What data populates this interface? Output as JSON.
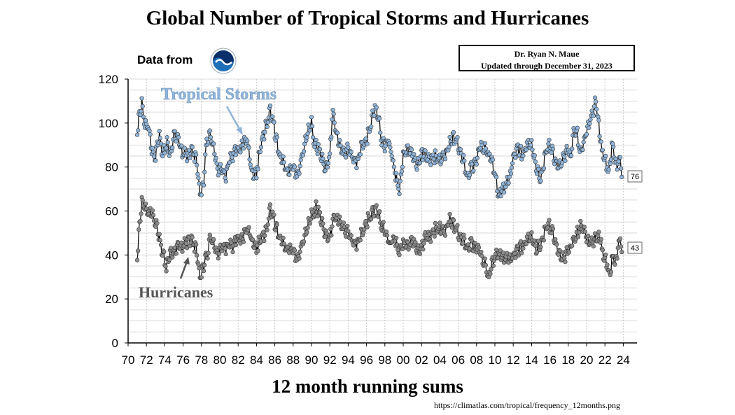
{
  "title": "Global Number of Tropical Storms and Hurricanes",
  "data_from": "Data from",
  "logo_name": "NOAA",
  "credit": {
    "author": "Dr. Ryan N. Maue",
    "updated": "Updated through December 31, 2023"
  },
  "source_url": "https://climatlas.com/tropical/frequency_12months.png",
  "chart_data": {
    "type": "line",
    "title": "Global Number of Tropical Storms and Hurricanes",
    "xlabel": "12 month running sums",
    "ylabel": "",
    "ylim": [
      0,
      120
    ],
    "xlim": [
      1970,
      2025
    ],
    "yticks": [
      "0",
      "20",
      "40",
      "60",
      "80",
      "100",
      "120"
    ],
    "xticks": [
      "70",
      "72",
      "74",
      "76",
      "78",
      "80",
      "82",
      "84",
      "86",
      "88",
      "90",
      "92",
      "94",
      "96",
      "98",
      "00",
      "02",
      "04",
      "06",
      "08",
      "10",
      "12",
      "14",
      "16",
      "18",
      "20",
      "22",
      "24"
    ],
    "grid": true,
    "colors": {
      "tropical_storms": "#8fb4d9",
      "hurricanes": "#8c8c8c",
      "fill": "#a9c6e6"
    },
    "annotations": {
      "tropical_storms": "Tropical Storms",
      "hurricanes": "Hurricanes",
      "ts_last": "76",
      "hu_last": "43"
    },
    "series": [
      {
        "name": "Tropical Storms",
        "x": [
          1971.0,
          1971.3,
          1971.5,
          1971.8,
          1972.2,
          1972.6,
          1973.0,
          1973.4,
          1973.8,
          1974.2,
          1974.6,
          1975.0,
          1975.5,
          1976.0,
          1976.5,
          1977.0,
          1977.5,
          1977.8,
          1978.2,
          1978.6,
          1979.0,
          1979.4,
          1979.8,
          1980.2,
          1980.6,
          1981.0,
          1981.5,
          1982.0,
          1982.5,
          1983.0,
          1983.3,
          1983.7,
          1984.0,
          1984.5,
          1985.0,
          1985.5,
          1985.8,
          1986.2,
          1986.6,
          1987.0,
          1987.5,
          1988.0,
          1988.5,
          1989.0,
          1989.5,
          1990.0,
          1990.3,
          1990.7,
          1991.0,
          1991.5,
          1992.0,
          1992.3,
          1992.6,
          1993.0,
          1993.5,
          1994.0,
          1994.5,
          1995.0,
          1995.5,
          1996.0,
          1996.5,
          1996.9,
          1997.3,
          1997.7,
          1998.0,
          1998.4,
          1998.8,
          1999.2,
          1999.6,
          2000.0,
          2000.5,
          2001.0,
          2001.5,
          2002.0,
          2002.5,
          2003.0,
          2003.5,
          2004.0,
          2004.5,
          2005.0,
          2005.5,
          2006.0,
          2006.5,
          2007.0,
          2007.5,
          2008.0,
          2008.5,
          2009.0,
          2009.5,
          2010.0,
          2010.4,
          2010.8,
          2011.2,
          2011.6,
          2012.0,
          2012.5,
          2013.0,
          2013.5,
          2014.0,
          2014.3,
          2014.7,
          2015.0,
          2015.5,
          2016.0,
          2016.5,
          2017.0,
          2017.5,
          2018.0,
          2018.3,
          2018.6,
          2019.0,
          2019.3,
          2019.7,
          2020.0,
          2020.4,
          2020.7,
          2021.0,
          2021.3,
          2021.6,
          2022.0,
          2022.4,
          2022.8,
          2023.2,
          2023.6,
          2023.9
        ],
        "values": [
          97,
          105,
          110,
          100,
          98,
          88,
          85,
          95,
          85,
          92,
          84,
          96,
          92,
          86,
          85,
          88,
          83,
          68,
          72,
          93,
          94,
          88,
          78,
          80,
          75,
          83,
          86,
          88,
          90,
          92,
          82,
          75,
          78,
          90,
          98,
          105,
          100,
          92,
          84,
          82,
          78,
          80,
          76,
          85,
          95,
          100,
          92,
          88,
          85,
          80,
          85,
          105,
          98,
          90,
          86,
          88,
          85,
          82,
          90,
          92,
          100,
          107,
          102,
          92,
          88,
          92,
          85,
          75,
          70,
          85,
          88,
          85,
          80,
          87,
          84,
          82,
          85,
          84,
          85,
          90,
          94,
          90,
          84,
          76,
          80,
          84,
          90,
          88,
          84,
          78,
          66,
          70,
          72,
          75,
          85,
          88,
          86,
          89,
          90,
          84,
          77,
          75,
          86,
          90,
          84,
          80,
          84,
          88,
          84,
          96,
          95,
          87,
          90,
          96,
          102,
          105,
          110,
          100,
          88,
          84,
          78,
          90,
          80,
          84,
          76
        ]
      },
      {
        "name": "Hurricanes",
        "x": [
          1971.0,
          1971.3,
          1971.5,
          1971.8,
          1972.2,
          1972.6,
          1973.0,
          1973.4,
          1973.8,
          1974.2,
          1974.6,
          1975.0,
          1975.5,
          1976.0,
          1976.5,
          1977.0,
          1977.5,
          1977.8,
          1978.2,
          1978.6,
          1979.0,
          1979.4,
          1979.8,
          1980.2,
          1980.6,
          1981.0,
          1981.5,
          1982.0,
          1982.5,
          1983.0,
          1983.4,
          1983.8,
          1984.2,
          1984.6,
          1985.0,
          1985.5,
          1985.8,
          1986.2,
          1986.6,
          1987.0,
          1987.5,
          1988.0,
          1988.5,
          1989.0,
          1989.5,
          1990.0,
          1990.5,
          1991.0,
          1991.5,
          1992.0,
          1992.5,
          1993.0,
          1993.5,
          1994.0,
          1994.5,
          1995.0,
          1995.5,
          1996.0,
          1996.5,
          1997.0,
          1997.5,
          1998.0,
          1998.5,
          1999.0,
          1999.5,
          2000.0,
          2000.5,
          2001.0,
          2001.5,
          2002.0,
          2002.5,
          2003.0,
          2003.5,
          2004.0,
          2004.5,
          2005.0,
          2005.5,
          2006.0,
          2006.5,
          2007.0,
          2007.5,
          2008.0,
          2008.5,
          2009.0,
          2009.3,
          2009.7,
          2010.0,
          2010.5,
          2011.0,
          2011.5,
          2012.0,
          2012.5,
          2013.0,
          2013.5,
          2014.0,
          2014.5,
          2015.0,
          2015.5,
          2016.0,
          2016.5,
          2017.0,
          2017.5,
          2018.0,
          2018.5,
          2019.0,
          2019.3,
          2019.7,
          2020.0,
          2020.5,
          2021.0,
          2021.4,
          2021.8,
          2022.2,
          2022.5,
          2022.8,
          2023.2,
          2023.5,
          2023.9
        ],
        "values": [
          40,
          56,
          65,
          63,
          58,
          60,
          55,
          48,
          40,
          35,
          40,
          42,
          44,
          44,
          46,
          47,
          42,
          30,
          35,
          40,
          48,
          45,
          40,
          44,
          43,
          45,
          44,
          48,
          47,
          52,
          48,
          43,
          45,
          48,
          50,
          60,
          57,
          52,
          47,
          45,
          43,
          42,
          38,
          45,
          52,
          58,
          62,
          56,
          50,
          48,
          58,
          55,
          52,
          50,
          47,
          45,
          50,
          55,
          58,
          61,
          56,
          50,
          45,
          48,
          42,
          45,
          44,
          46,
          42,
          44,
          48,
          47,
          52,
          53,
          50,
          56,
          54,
          50,
          47,
          44,
          45,
          44,
          40,
          35,
          29,
          36,
          40,
          40,
          39,
          38,
          40,
          42,
          44,
          46,
          48,
          43,
          45,
          52,
          53,
          48,
          40,
          38,
          42,
          45,
          50,
          54,
          51,
          47,
          46,
          47,
          48,
          40,
          37,
          31,
          38,
          36,
          47,
          43
        ]
      }
    ]
  }
}
